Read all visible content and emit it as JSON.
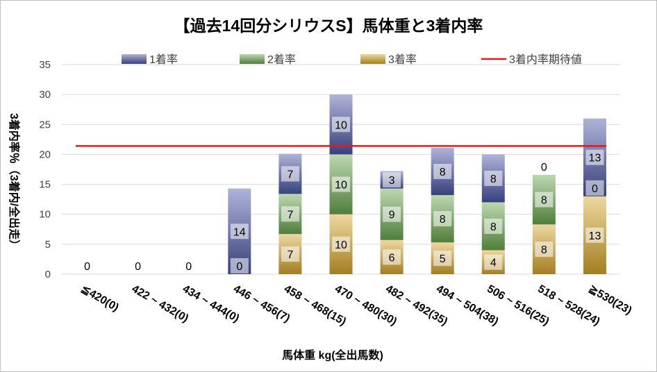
{
  "chart_data": {
    "type": "bar",
    "stacked": true,
    "title": "【過去14回分シリウスS】馬体重と3着内率",
    "xlabel": "馬体重 kg(全出馬数)",
    "ylabel": "3着内率％（3着内/全出走）",
    "ylim": [
      0,
      35
    ],
    "yticks": [
      "0",
      "5",
      "10",
      "15",
      "20",
      "25",
      "30",
      "35"
    ],
    "grid": true,
    "legend_position": "top",
    "categories": [
      "≦420(0)",
      "422 ~ 432(0)",
      "434 ~ 444(0)",
      "446 ~ 456(7)",
      "458 ~ 468(15)",
      "470 ~ 480(30)",
      "482 ~ 492(35)",
      "494 ~ 504(38)",
      "506 ~ 516(25)",
      "518 ~ 528(24)",
      "≧530(23)"
    ],
    "series": [
      {
        "name": "3着率",
        "color": "#d9a82c",
        "values": [
          0,
          0,
          0,
          0,
          6.7,
          10.0,
          5.7,
          5.3,
          4.0,
          8.3,
          13.0
        ],
        "labels": [
          "0",
          "0",
          "0",
          "0",
          "7",
          "10",
          "6",
          "5",
          "4",
          "8",
          "13"
        ]
      },
      {
        "name": "2着率",
        "color": "#6aa84f",
        "values": [
          0,
          0,
          0,
          0,
          6.7,
          10.0,
          8.6,
          7.9,
          8.0,
          8.3,
          0
        ],
        "labels": [
          "",
          "",
          "",
          "",
          "7",
          "10",
          "9",
          "8",
          "8",
          "8",
          "0"
        ]
      },
      {
        "name": "1着率",
        "color": "#4a56a6",
        "values": [
          0,
          0,
          0,
          14.3,
          6.7,
          10.0,
          2.9,
          7.9,
          8.0,
          0,
          13.0
        ],
        "labels": [
          "",
          "",
          "",
          "14",
          "7",
          "10",
          "3",
          "8",
          "8",
          "0",
          "13"
        ]
      }
    ],
    "reference_line": {
      "name": "3着内率期待値",
      "value": 21.4,
      "color": "#e31a1c"
    }
  },
  "legend": [
    {
      "key": "first",
      "label": "1着率",
      "color": "#4a56a6"
    },
    {
      "key": "second",
      "label": "2着率",
      "color": "#6aa84f"
    },
    {
      "key": "third",
      "label": "3着率",
      "color": "#d9a82c"
    },
    {
      "key": "expected",
      "label": "3着内率期待値",
      "color": "#e31a1c"
    }
  ]
}
